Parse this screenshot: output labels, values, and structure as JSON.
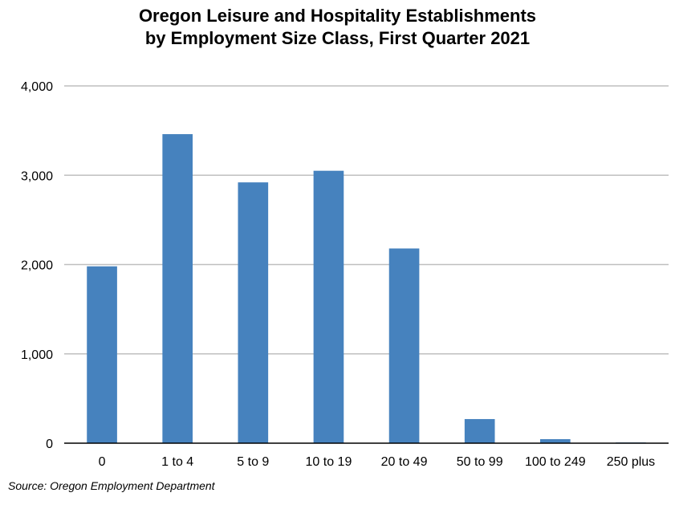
{
  "chart_data": {
    "type": "bar",
    "title_lines": [
      "Oregon Leisure and Hospitality Establishments",
      "by Employment Size Class, First Quarter 2021"
    ],
    "categories": [
      "0",
      "1 to 4",
      "5 to 9",
      "10 to 19",
      "20 to 49",
      "50 to 99",
      "100 to 249",
      "250 plus"
    ],
    "values": [
      1980,
      3460,
      2920,
      3050,
      2180,
      270,
      45,
      8
    ],
    "ylim": [
      0,
      4000
    ],
    "yticks": [
      0,
      1000,
      2000,
      3000,
      4000
    ],
    "ytick_labels": [
      "0",
      "1,000",
      "2,000",
      "3,000",
      "4,000"
    ],
    "xlabel": "",
    "ylabel": "",
    "grid": true,
    "bar_color": "#4682BE",
    "grid_color": "#BFBFBF",
    "axis_color": "#000000"
  },
  "source": "Source: Oregon Employment Department"
}
